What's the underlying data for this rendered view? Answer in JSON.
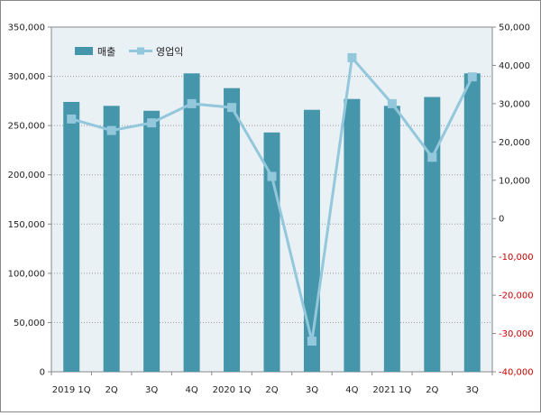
{
  "chart_data": {
    "type": "bar",
    "categories": [
      "2019 1Q",
      "2Q",
      "3Q",
      "4Q",
      "2020 1Q",
      "2Q",
      "3Q",
      "4Q",
      "2021 1Q",
      "2Q",
      "3Q"
    ],
    "series": [
      {
        "name": "매출",
        "type": "bar",
        "axis": "left",
        "color": "#4596ab",
        "values": [
          274000,
          270000,
          265000,
          303000,
          288000,
          243000,
          266000,
          277000,
          270000,
          279000,
          303000
        ]
      },
      {
        "name": "영업익",
        "type": "line",
        "axis": "right",
        "color": "#93c7db",
        "marker": "square",
        "values": [
          26000,
          23000,
          25000,
          30000,
          29000,
          11000,
          -32000,
          42000,
          30000,
          16000,
          37000
        ]
      }
    ],
    "y_left": {
      "ylim": [
        0,
        350000
      ],
      "ticks": [
        0,
        50000,
        100000,
        150000,
        200000,
        250000,
        300000,
        350000
      ],
      "tick_labels": [
        "0",
        "50,000",
        "100,000",
        "150,000",
        "200,000",
        "250,000",
        "300,000",
        "350,000"
      ]
    },
    "y_right": {
      "ylim": [
        -40000,
        50000
      ],
      "ticks": [
        -40000,
        -30000,
        -20000,
        -10000,
        0,
        10000,
        20000,
        30000,
        40000,
        50000
      ],
      "tick_labels": [
        "-40,000",
        "-30,000",
        "-20,000",
        "-10,000",
        "0",
        "10,000",
        "20,000",
        "30,000",
        "40,000",
        "50,000"
      ],
      "negative_color": "#cc0000"
    },
    "legend": {
      "placement": "top-left",
      "entries": [
        "매출",
        "영업익"
      ]
    },
    "grid": true,
    "plot_background": "#e9f1f5"
  }
}
